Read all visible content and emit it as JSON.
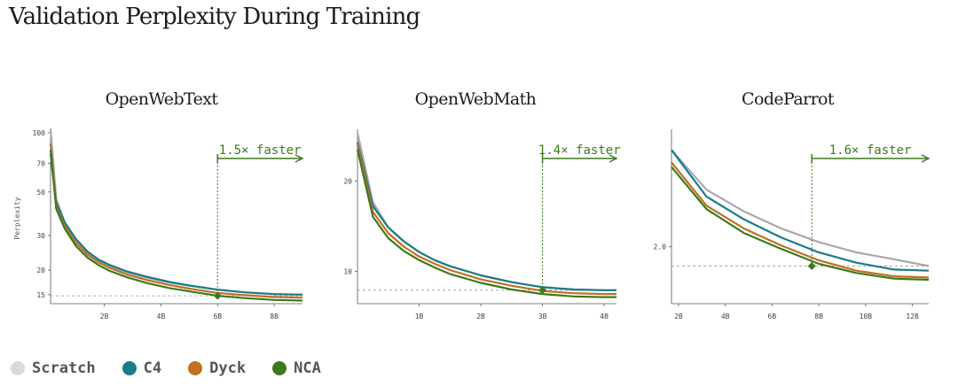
{
  "title": "Validation Perplexity During Training",
  "legend": [
    {
      "name": "Scratch",
      "color": "#d9d9d9"
    },
    {
      "name": "C4",
      "color": "#1a7b8a"
    },
    {
      "name": "Dyck",
      "color": "#c0701f"
    },
    {
      "name": "NCA",
      "color": "#3d7a1c"
    }
  ],
  "series_colors": {
    "Scratch": "#a8a6b0",
    "C4": "#1a7b8a",
    "Dyck": "#c0701f",
    "NCA": "#3d7a1c"
  },
  "annotation_color": "#3d7a1c",
  "chart_data": [
    {
      "type": "line",
      "title": "OpenWebText",
      "xlabel": "",
      "ylabel": "Perplexity",
      "yscale": "log",
      "xlim": [
        0.1,
        9.0
      ],
      "ylim": [
        13.5,
        100
      ],
      "xticks": [
        2,
        4,
        6,
        8
      ],
      "xtick_labels": [
        "2B",
        "4B",
        "6B",
        "8B"
      ],
      "yticks": [
        15,
        20,
        30,
        50,
        70,
        100
      ],
      "ytick_labels": [
        "15",
        "20",
        "30",
        "50",
        "70",
        "100"
      ],
      "annotation": {
        "label": "1.5× faster",
        "x": 6.0,
        "y": 14.8,
        "baseline_y": 14.8
      },
      "x": [
        0.1,
        0.3,
        0.6,
        1.0,
        1.4,
        1.8,
        2.2,
        2.8,
        3.5,
        4.3,
        5.0,
        6.0,
        7.0,
        8.0,
        9.0
      ],
      "series": [
        {
          "name": "Scratch",
          "values": [
            105,
            46,
            35,
            28.5,
            24.6,
            22.4,
            21,
            19.5,
            18.3,
            17.3,
            16.7,
            15.9,
            15.4,
            15.1,
            15.0
          ]
        },
        {
          "name": "C4",
          "values": [
            78,
            44,
            35,
            28.8,
            24.9,
            22.6,
            21.2,
            19.7,
            18.5,
            17.4,
            16.7,
            15.9,
            15.4,
            15.1,
            15.0
          ]
        },
        {
          "name": "Dyck",
          "values": [
            88,
            42,
            33.5,
            27.5,
            24,
            21.9,
            20.5,
            19,
            17.8,
            16.8,
            16.1,
            15.3,
            14.9,
            14.6,
            14.5
          ]
        },
        {
          "name": "NCA",
          "values": [
            82,
            41,
            32.5,
            26.5,
            23.2,
            21.2,
            19.8,
            18.4,
            17.2,
            16.2,
            15.6,
            14.8,
            14.4,
            14.1,
            14.0
          ]
        }
      ]
    },
    {
      "type": "line",
      "title": "OpenWebMath",
      "xlabel": "",
      "ylabel": "",
      "yscale": "log",
      "xlim": [
        0.0,
        4.2
      ],
      "ylim": [
        7.8,
        29
      ],
      "xticks": [
        1,
        2,
        3,
        4
      ],
      "xtick_labels": [
        "1B",
        "2B",
        "3B",
        "4B"
      ],
      "yticks": [
        10,
        20
      ],
      "ytick_labels": [
        "10",
        "20"
      ],
      "annotation": {
        "label": "1.4× faster",
        "x": 3.0,
        "y": 8.65,
        "baseline_y": 8.65
      },
      "x": [
        0.0,
        0.25,
        0.5,
        0.75,
        1.0,
        1.25,
        1.5,
        2.0,
        2.5,
        3.0,
        3.5,
        4.0,
        4.2
      ],
      "series": [
        {
          "name": "Scratch",
          "values": [
            29,
            17,
            14,
            12.6,
            11.6,
            10.9,
            10.4,
            9.7,
            9.2,
            8.85,
            8.7,
            8.65,
            8.65
          ]
        },
        {
          "name": "C4",
          "values": [
            27,
            16.5,
            14,
            12.6,
            11.6,
            10.9,
            10.4,
            9.7,
            9.2,
            8.85,
            8.7,
            8.65,
            8.65
          ]
        },
        {
          "name": "Dyck",
          "values": [
            26.5,
            15.8,
            13.4,
            12.1,
            11.2,
            10.6,
            10.1,
            9.4,
            8.95,
            8.6,
            8.45,
            8.4,
            8.4
          ]
        },
        {
          "name": "NCA",
          "values": [
            25.5,
            15.2,
            12.9,
            11.7,
            10.9,
            10.3,
            9.8,
            9.15,
            8.7,
            8.4,
            8.25,
            8.2,
            8.2
          ]
        }
      ]
    },
    {
      "type": "line",
      "title": "CodeParrot",
      "xlabel": "",
      "ylabel": "",
      "yscale": "linear",
      "xlim": [
        1.7,
        12.7
      ],
      "ylim": [
        1.5,
        3.0
      ],
      "xticks": [
        2,
        4,
        6,
        8,
        10,
        12
      ],
      "xtick_labels": [
        "2B",
        "4B",
        "6B",
        "8B",
        "10B",
        "12B"
      ],
      "yticks": [
        2.0
      ],
      "ytick_labels": [
        "2.0"
      ],
      "annotation": {
        "label": "1.6× faster",
        "x": 7.7,
        "y": 1.83,
        "baseline_y": 1.83
      },
      "x": [
        1.7,
        3.2,
        4.8,
        6.4,
        8.0,
        9.6,
        11.2,
        12.7
      ],
      "series": [
        {
          "name": "Scratch",
          "values": [
            2.85,
            2.5,
            2.31,
            2.16,
            2.04,
            1.95,
            1.89,
            1.83
          ]
        },
        {
          "name": "C4",
          "values": [
            2.85,
            2.44,
            2.24,
            2.08,
            1.95,
            1.86,
            1.8,
            1.79
          ]
        },
        {
          "name": "Dyck",
          "values": [
            2.74,
            2.36,
            2.16,
            2.01,
            1.88,
            1.79,
            1.74,
            1.73
          ]
        },
        {
          "name": "NCA",
          "values": [
            2.7,
            2.33,
            2.12,
            1.98,
            1.85,
            1.77,
            1.72,
            1.71
          ]
        }
      ]
    }
  ]
}
